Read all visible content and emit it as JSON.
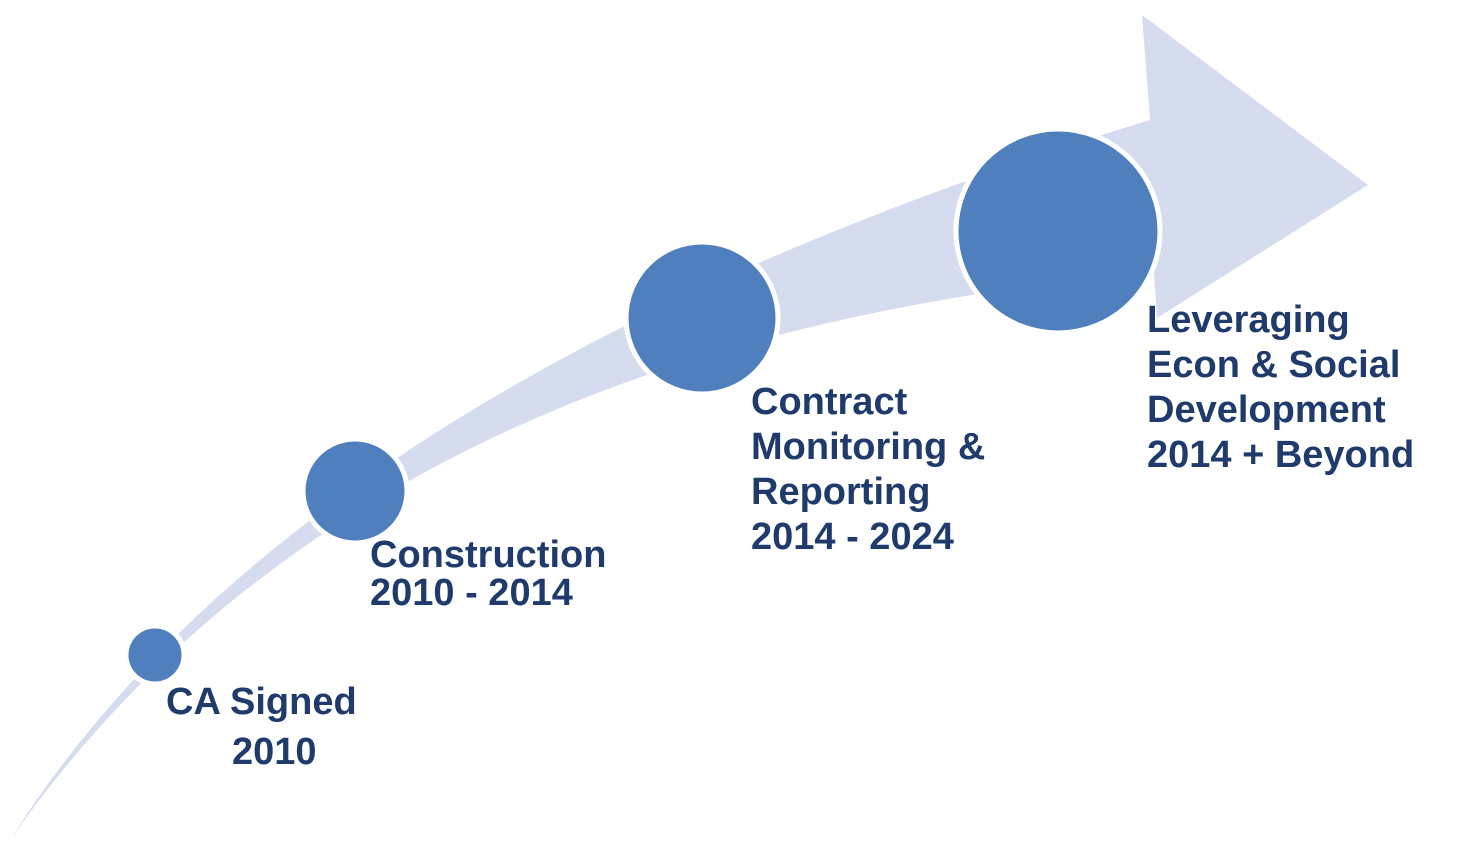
{
  "colors": {
    "arrow": "#d4dced",
    "node_fill": "#4f7fbd",
    "node_stroke": "#ffffff",
    "text": "#1f3a6b"
  },
  "stages": [
    {
      "line1": "CA Signed",
      "line2": "2010"
    },
    {
      "line1": "Construction",
      "line2": "2010 - 2014"
    },
    {
      "line1": "Contract",
      "line2": "Monitoring &",
      "line3": "Reporting",
      "line4": "2014 - 2024"
    },
    {
      "line1": "Leveraging",
      "line2": "Econ & Social",
      "line3": "Development",
      "line4": "2014 + Beyond"
    }
  ]
}
